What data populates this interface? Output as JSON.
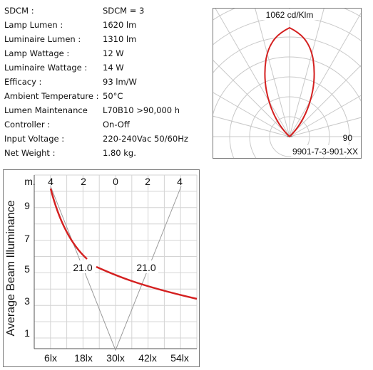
{
  "specs": [
    {
      "label": "SDCM :",
      "value": "SDCM = 3"
    },
    {
      "label": "Lamp Lumen :",
      "value": "1620 lm"
    },
    {
      "label": "Luminaire Lumen :",
      "value": "1310 lm"
    },
    {
      "label": "Lamp Wattage :",
      "value": "12 W"
    },
    {
      "label": "Luminaire Wattage :",
      "value": "14 W"
    },
    {
      "label": "Efficacy :",
      "value": "93 lm/W"
    },
    {
      "label": "Ambient Temperature :",
      "value": "50°C"
    },
    {
      "label": "Lumen Maintenance",
      "value": "L70B10 >90,000 h"
    },
    {
      "label": "Controller :",
      "value": "On-Off"
    },
    {
      "label": "Input Voltage :",
      "value": "220-240Vac 50/60Hz"
    },
    {
      "label": "Net Weight :",
      "value": "1.80 kg."
    }
  ],
  "polar": {
    "peak_label": "1062 cd/Klm",
    "angle_label": "90",
    "code": "9901-7-3-901-XX",
    "curve_color": "#d42020"
  },
  "beam": {
    "y_axis_title": "Average Beam Illuminance",
    "unit_label": "m.",
    "top_ticks": [
      "4",
      "2",
      "0",
      "2",
      "4"
    ],
    "y_ticks": [
      "9",
      "7",
      "5",
      "3",
      "1"
    ],
    "x_ticks": [
      "6lx",
      "18lx",
      "30lx",
      "42lx",
      "54lx"
    ],
    "angle_left": "21.0",
    "angle_right": "21.0",
    "curve_color": "#d42020"
  }
}
